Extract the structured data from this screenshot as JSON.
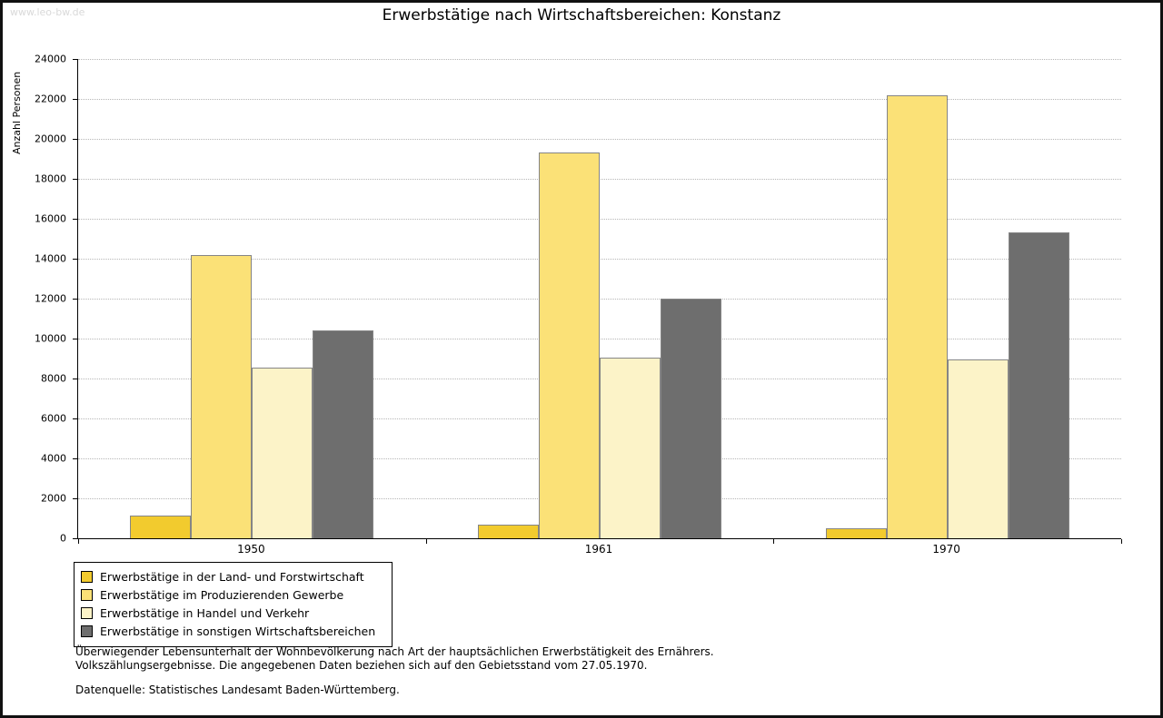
{
  "watermark": "www.leo-bw.de",
  "chart_data": {
    "type": "bar",
    "title": "Erwerbstätige nach Wirtschaftsbereichen: Konstanz",
    "ylabel": "Anzahl Personen",
    "ylim": [
      0,
      24000
    ],
    "ytick_step": 2000,
    "grid": true,
    "legend_position": "bottom-left",
    "categories": [
      "1950",
      "1961",
      "1970"
    ],
    "series": [
      {
        "name": "Erwerbstätige in der Land- und Forstwirtschaft",
        "color": "#F2CB2E",
        "values": [
          1150,
          700,
          500
        ]
      },
      {
        "name": "Erwerbstätige im Produzierenden Gewerbe",
        "color": "#FBE177",
        "values": [
          14200,
          19300,
          22200
        ]
      },
      {
        "name": "Erwerbstätige in Handel und Verkehr",
        "color": "#FCF3C8",
        "values": [
          8550,
          9050,
          8950
        ]
      },
      {
        "name": "Erwerbstätige in sonstigen Wirtschaftsbereichen",
        "color": "#6E6E6E",
        "values": [
          10400,
          12000,
          15300
        ]
      }
    ]
  },
  "footnotes": {
    "note_line1": "Überwiegender Lebensunterhalt der Wohnbevölkerung nach Art der hauptsächlichen Erwerbstätigkeit des Ernährers.",
    "note_line2": "Volkszählungsergebnisse. Die angegebenen Daten beziehen sich auf den Gebietsstand vom 27.05.1970.",
    "source": "Datenquelle: Statistisches Landesamt Baden-Württemberg."
  }
}
